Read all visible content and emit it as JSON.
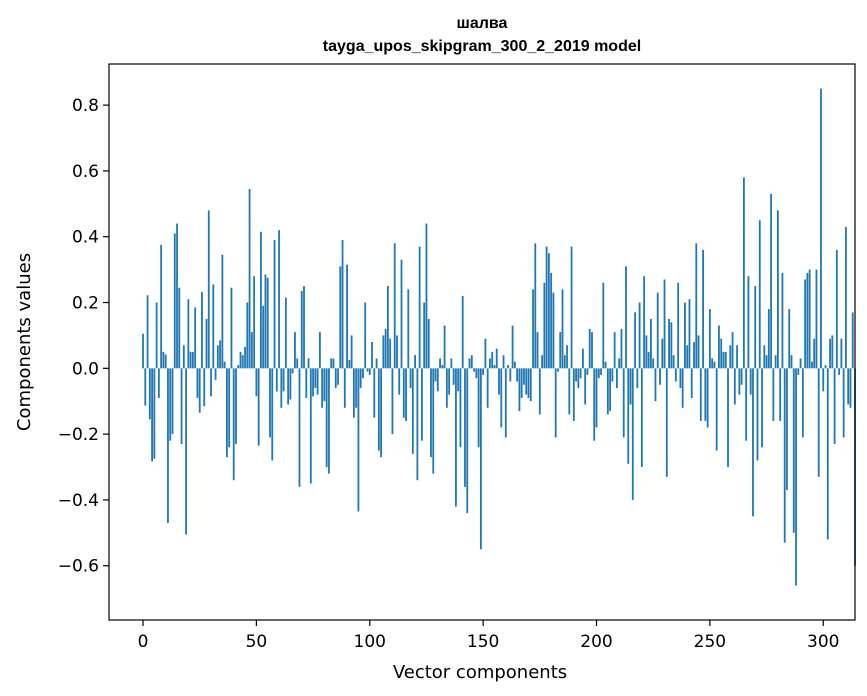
{
  "chart_data": {
    "type": "bar",
    "title": "шалва",
    "subtitle": "tayga_upos_skipgram_300_2_2019 model",
    "xlabel": "Vector components",
    "ylabel": "Components values",
    "xlim": [
      -15,
      314
    ],
    "ylim": [
      -0.765,
      0.925
    ],
    "xticks": [
      0,
      50,
      100,
      150,
      200,
      250,
      300
    ],
    "xtick_labels": [
      "0",
      "50",
      "100",
      "150",
      "200",
      "250",
      "300"
    ],
    "yticks": [
      -0.6,
      -0.4,
      -0.2,
      0.0,
      0.2,
      0.4,
      0.6,
      0.8
    ],
    "ytick_labels": [
      "−0.6",
      "−0.4",
      "−0.2",
      "0.0",
      "0.2",
      "0.4",
      "0.6",
      "0.8"
    ],
    "grid": false,
    "legend": "none",
    "bar_color": "#1f77b4",
    "values": [
      0.105,
      -0.113,
      0.222,
      -0.155,
      -0.283,
      -0.275,
      0.2,
      -0.09,
      0.375,
      0.05,
      0.042,
      -0.47,
      -0.22,
      -0.2,
      0.41,
      0.44,
      0.245,
      -0.23,
      0.07,
      -0.505,
      0.21,
      0.05,
      0.05,
      0.185,
      -0.09,
      -0.135,
      0.232,
      -0.115,
      0.15,
      0.48,
      -0.085,
      0.255,
      -0.035,
      0.07,
      0.085,
      0.345,
      0.02,
      -0.27,
      -0.24,
      0.245,
      -0.34,
      -0.23,
      0.01,
      0.05,
      0.04,
      0.065,
      0.2,
      0.545,
      0.11,
      0.28,
      -0.085,
      -0.235,
      0.415,
      0.19,
      0.285,
      0.275,
      -0.21,
      -0.28,
      0.39,
      -0.07,
      0.42,
      -0.12,
      -0.07,
      0.215,
      -0.11,
      -0.095,
      -0.015,
      0.11,
      0.03,
      -0.36,
      0.235,
      0.25,
      -0.09,
      0.03,
      -0.35,
      -0.085,
      -0.06,
      -0.08,
      0.11,
      -0.12,
      -0.1,
      -0.3,
      -0.32,
      0.03,
      0.03,
      -0.06,
      -0.05,
      0.31,
      0.39,
      -0.12,
      0.315,
      0.025,
      0.1,
      -0.15,
      -0.12,
      -0.435,
      -0.06,
      -0.03,
      0.2,
      -0.01,
      -0.02,
      0.08,
      -0.15,
      0.03,
      -0.25,
      -0.27,
      0.1,
      0.12,
      0.25,
      0.09,
      -0.2,
      0.38,
      0.1,
      -0.08,
      0.33,
      -0.15,
      -0.16,
      0.24,
      -0.06,
      -0.26,
      0.04,
      -0.34,
      0.37,
      -0.22,
      0.2,
      0.44,
      0.15,
      -0.27,
      -0.32,
      -0.04,
      -0.07,
      0.03,
      0.01,
      0.13,
      -0.12,
      -0.08,
      0.03,
      -0.05,
      -0.42,
      -0.07,
      -0.24,
      0.22,
      -0.36,
      -0.44,
      0.03,
      0.04,
      -0.01,
      -0.03,
      -0.24,
      -0.55,
      -0.02,
      0.09,
      -0.12,
      0.03,
      0.05,
      0.01,
      0.06,
      -0.08,
      -0.18,
      0.04,
      -0.21,
      0.01,
      -0.04,
      0.13,
      0.02,
      -0.04,
      -0.13,
      -0.09,
      -0.05,
      -0.08,
      -0.09,
      -0.1,
      0.24,
      0.38,
      0.11,
      -0.14,
      0.04,
      0.26,
      0.37,
      0.35,
      0.29,
      0.23,
      -0.21,
      -0.01,
      0.11,
      0.24,
      0.04,
      0.07,
      -0.14,
      0.37,
      -0.16,
      -0.04,
      -0.06,
      -0.03,
      0.06,
      -0.11,
      -0.02,
      0.12,
      0.11,
      -0.22,
      -0.18,
      -0.03,
      -0.02,
      0.26,
      0.02,
      -0.14,
      -0.13,
      -0.04,
      0.11,
      -0.06,
      0.03,
      0.12,
      -0.21,
      0.31,
      -0.29,
      -0.11,
      -0.4,
      0.17,
      -0.06,
      0.2,
      -0.3,
      0.28,
      0.1,
      0.05,
      0.15,
      0.03,
      -0.1,
      0.23,
      -0.05,
      0.09,
      0.27,
      -0.33,
      0.15,
      0.14,
      0.04,
      -0.04,
      0.26,
      -0.06,
      -0.12,
      0.2,
      0.07,
      0.21,
      -0.09,
      0.08,
      0.38,
      0.1,
      -0.16,
      0.36,
      -0.16,
      -0.18,
      0.18,
      0.03,
      0.02,
      -0.25,
      0.13,
      0.09,
      0.05,
      0.05,
      -0.3,
      0.07,
      0.11,
      -0.11,
      0.07,
      -0.08,
      -0.05,
      0.58,
      -0.22,
      0.28,
      -0.08,
      -0.45,
      0.25,
      -0.28,
      0.45,
      -0.24,
      0.07,
      0.04,
      0.18,
      0.53,
      -0.16,
      0.04,
      0.48,
      -0.16,
      0.29,
      -0.53,
      -0.37,
      0.18,
      0.04,
      -0.5,
      -0.66,
      -0.02,
      0.03,
      -0.21,
      0.27,
      0.29,
      0.3,
      0.02,
      0.09,
      0.3,
      -0.33,
      0.85,
      -0.07,
      0.01,
      -0.52,
      0.09,
      0.1,
      -0.23,
      0.36,
      -0.02,
      0.09,
      -0.21,
      0.43,
      -0.11,
      -0.12,
      0.17,
      -0.6
    ]
  }
}
